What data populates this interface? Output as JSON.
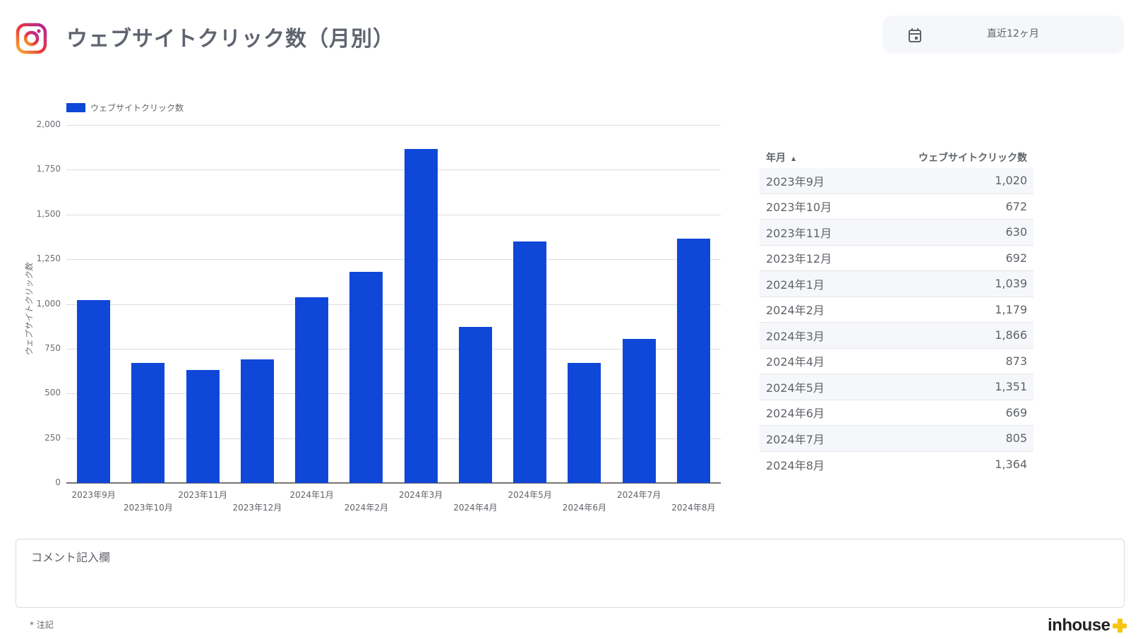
{
  "header": {
    "title": "ウェブサイトクリック数（月別）",
    "logo": "instagram-logo",
    "date_filter": {
      "icon": "calendar-icon",
      "label": "直近12ヶ月"
    }
  },
  "chart_data": {
    "type": "bar",
    "title": "",
    "legend": [
      "ウェブサイトクリック数"
    ],
    "legend_position": "top-left",
    "xlabel": "",
    "ylabel": "ウェブサイトクリック数",
    "ylim": [
      0,
      2000
    ],
    "yticks": [
      "0",
      "250",
      "500",
      "750",
      "1,000",
      "1,250",
      "1,500",
      "1,750",
      "2,000"
    ],
    "grid": true,
    "color": "#0f47d9",
    "categories": [
      "2023年9月",
      "2023年10月",
      "2023年11月",
      "2023年12月",
      "2024年1月",
      "2024年2月",
      "2024年3月",
      "2024年4月",
      "2024年5月",
      "2024年6月",
      "2024年7月",
      "2024年8月"
    ],
    "values": [
      1020,
      672,
      630,
      692,
      1039,
      1179,
      1866,
      873,
      1351,
      669,
      805,
      1364
    ]
  },
  "table": {
    "headers": {
      "month": "年月",
      "sort_icon": "▲",
      "clicks": "ウェブサイトクリック数"
    },
    "rows": [
      {
        "month": "2023年9月",
        "clicks": "1,020"
      },
      {
        "month": "2023年10月",
        "clicks": "672"
      },
      {
        "month": "2023年11月",
        "clicks": "630"
      },
      {
        "month": "2023年12月",
        "clicks": "692"
      },
      {
        "month": "2024年1月",
        "clicks": "1,039"
      },
      {
        "month": "2024年2月",
        "clicks": "1,179"
      },
      {
        "month": "2024年3月",
        "clicks": "1,866"
      },
      {
        "month": "2024年4月",
        "clicks": "873"
      },
      {
        "month": "2024年5月",
        "clicks": "1,351"
      },
      {
        "month": "2024年6月",
        "clicks": "669"
      },
      {
        "month": "2024年7月",
        "clicks": "805"
      },
      {
        "month": "2024年8月",
        "clicks": "1,364"
      }
    ]
  },
  "comment": {
    "label": "コメント記入欄"
  },
  "footer": {
    "note": "* 注記",
    "brand": "inhouse"
  }
}
